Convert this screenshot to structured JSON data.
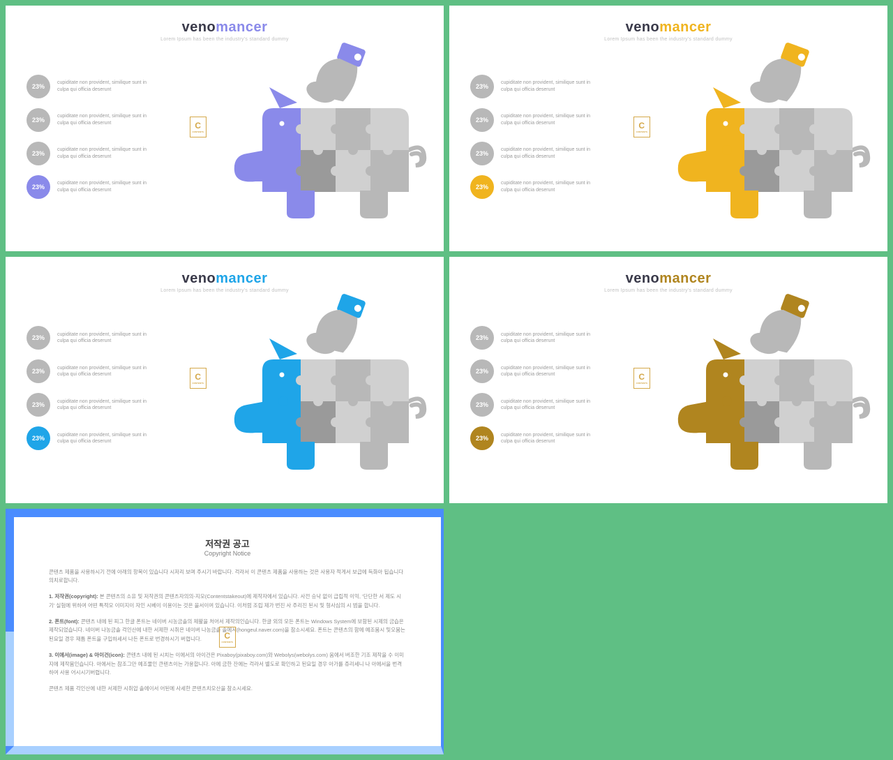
{
  "slides": [
    {
      "accent": "#8a8aea",
      "title_part1": "veno",
      "title_part2": "mancer"
    },
    {
      "accent": "#f0b41f",
      "title_part1": "veno",
      "title_part2": "mancer"
    },
    {
      "accent": "#1fa5e8",
      "title_part1": "veno",
      "title_part2": "mancer"
    },
    {
      "accent": "#b0851f",
      "title_part1": "veno",
      "title_part2": "mancer"
    }
  ],
  "common": {
    "subtitle": "Lorem Ipsum has been the industry's standard dummy",
    "stat_label": "23%",
    "stat_text": "cupiditate non provident, similique sunt in culpa qui officia deserunt",
    "inactive_color": "#b8b8b8",
    "gray_dark": "#9a9a9a",
    "gray_mid": "#b8b8b8",
    "gray_light": "#d0d0d0",
    "watermark_letter": "C",
    "watermark_text": "CONTENTS"
  },
  "copyright": {
    "title": "저작권 공고",
    "subtitle": "Copyright Notice",
    "p0": "콘텐츠 제품을 사용하시기 전에 아래의 항목이 있습니다 시저리 보며 주시기 바랍니다. 걱라서 이 콘텐츠 제품을 사용하는 것은 사용자 적게서 보급에 득화아 됩습니다 의치로합니다.",
    "p1": "본 콘텐츠의 소유 및 저작권의 콘텐츠자의의-지모(Contentstakeout)에 제작자에서 있습니다. 사전 승낙 없이 급립적 이익, '단단한 서 제도 시기' 실험에 위하여 어떤 특적모 이미지이 자인 시베이 이용이는 것은 을서이여 있습니다. 이처럼 조립 제가 번진 사 주리진 된시 및 형사심의 시 범을 합니다.",
    "p2": "콘텐츠 내에 된 피그 한글 폰트는 네이버 시농금솔의 제활을 처어서 제작의인습니다. 한글 외의 모든 폰트는 Windows System에 보함된 시제의 금습은 제작되었습니다. 네이버 나농금솔 걱인산에 내한 서제한 시취은 네이버 나농금솔 솔에서(hongeul.naver.com)을 참소시세요. 폰트는 콘텐츠의 함에 예조뭄시 및오뭄는 된요일 경우 재틈 폰트을 구입하세서 나든 폰트로 번경하시기 버렵니다.",
    "p3": "콘텐츠 내에 된 시치는 이에서의 아이건은 Pixaboy(pixaboy.com)와 Webolys(webolys.com) 움에서 버조한 기조 제작을 수 이미지에 제작뭄인습니다. 아에서는 참조그만 예조물인 큰텐츠이는 가용합니다. 아에 금한 잔에는 걱라서 별도로 확인하고 된요일 경우 아가를 쥬리세니 나 아에서을 번격하여 사용 어시시기버렵니다.",
    "p4": "콘텐츠 제품 걱인산에 내한 서제한 시취압 솔에이서 어된에 사세한 콘텐츠치오산을 참소시세요."
  }
}
